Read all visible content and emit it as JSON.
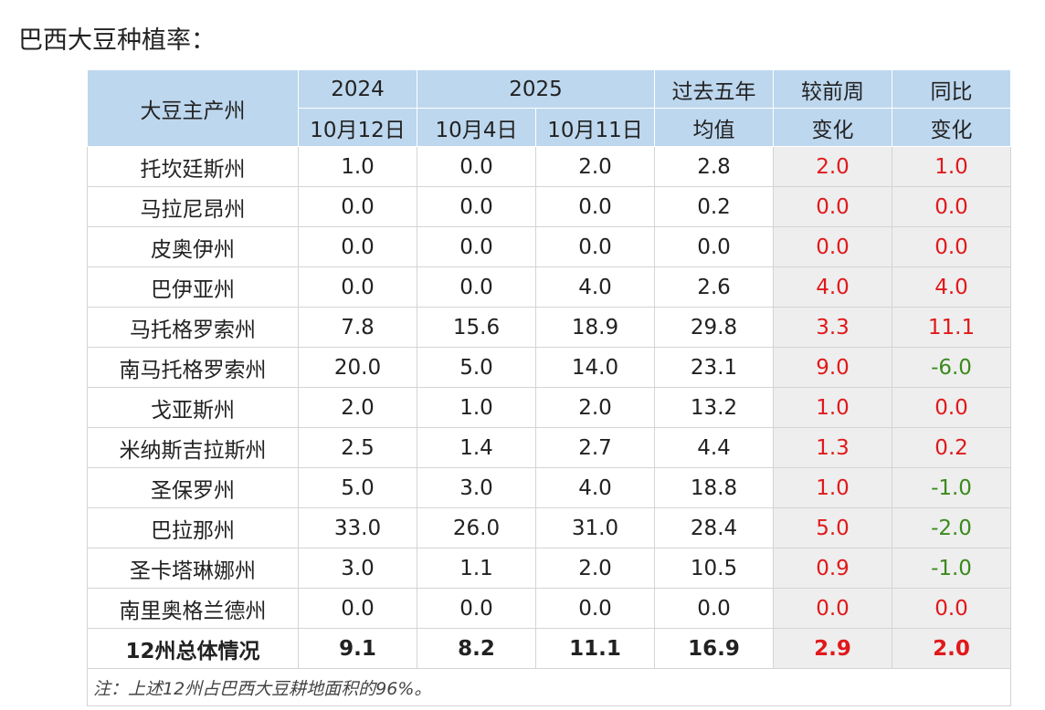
{
  "title": "巴西大豆种植率：",
  "table": {
    "header": [
      [
        "大豆主产州",
        "2024",
        "2025",
        "过去五年",
        "较前周",
        "同比"
      ],
      [
        "10月12日",
        "10月4日",
        "10月11日",
        "均值",
        "变化",
        "变化"
      ]
    ],
    "rows": [
      [
        "托坎廷斯州",
        "1.0",
        "0.0",
        "2.0",
        "2.8",
        "2.0",
        "1.0"
      ],
      [
        "马拉尼昂州",
        "0.0",
        "0.0",
        "0.0",
        "0.2",
        "0.0",
        "0.0"
      ],
      [
        "皮奥伊州",
        "0.0",
        "0.0",
        "0.0",
        "0.0",
        "0.0",
        "0.0"
      ],
      [
        "巴伊亚州",
        "0.0",
        "0.0",
        "4.0",
        "2.6",
        "4.0",
        "4.0"
      ],
      [
        "马托格罗索州",
        "7.8",
        "15.6",
        "18.9",
        "29.8",
        "3.3",
        "11.1"
      ],
      [
        "南马托格罗索州",
        "20.0",
        "5.0",
        "14.0",
        "23.1",
        "9.0",
        "-6.0"
      ],
      [
        "戈亚斯州",
        "2.0",
        "1.0",
        "2.0",
        "13.2",
        "1.0",
        "0.0"
      ],
      [
        "米纳斯吉拉斯州",
        "2.5",
        "1.4",
        "2.7",
        "4.4",
        "1.3",
        "0.2"
      ],
      [
        "圣保罗州",
        "5.0",
        "3.0",
        "4.0",
        "18.8",
        "1.0",
        "-1.0"
      ],
      [
        "巴拉那州",
        "33.0",
        "26.0",
        "31.0",
        "28.4",
        "5.0",
        "-2.0"
      ],
      [
        "圣卡塔琳娜州",
        "3.0",
        "1.1",
        "2.0",
        "10.5",
        "0.9",
        "-1.0"
      ],
      [
        "南里奥格兰德州",
        "0.0",
        "0.0",
        "0.0",
        "0.0",
        "0.0",
        "0.0"
      ]
    ],
    "total": [
      "12州总体情况",
      "9.1",
      "8.2",
      "11.1",
      "16.9",
      "2.9",
      "2.0"
    ],
    "note": "注：上述12州占巴西大豆耕地面积的96%。"
  }
}
